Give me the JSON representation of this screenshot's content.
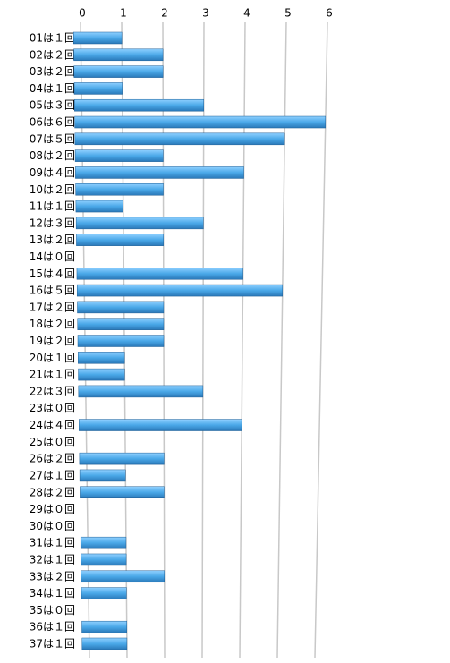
{
  "chart_data": {
    "type": "bar",
    "orientation": "horizontal",
    "categories": [
      "01は１回",
      "02は２回",
      "03は２回",
      "04は１回",
      "05は３回",
      "06は６回",
      "07は５回",
      "08は２回",
      "09は４回",
      "10は２回",
      "11は１回",
      "12は３回",
      "13は２回",
      "14は０回",
      "15は４回",
      "16は５回",
      "17は２回",
      "18は２回",
      "19は２回",
      "20は１回",
      "21は１回",
      "22は３回",
      "23は０回",
      "24は４回",
      "25は０回",
      "26は２回",
      "27は１回",
      "28は２回",
      "29は０回",
      "30は０回",
      "31は１回",
      "32は１回",
      "33は２回",
      "34は１回",
      "35は０回",
      "36は１回",
      "37は１回"
    ],
    "values": [
      1,
      2,
      2,
      1,
      3,
      6,
      5,
      2,
      4,
      2,
      1,
      3,
      2,
      0,
      4,
      5,
      2,
      2,
      2,
      1,
      1,
      3,
      0,
      4,
      0,
      2,
      1,
      2,
      0,
      0,
      1,
      1,
      2,
      1,
      0,
      1,
      1
    ],
    "color": "#4aa8e8",
    "xlim": [
      0,
      6.5
    ],
    "xticks": [
      0,
      1,
      2,
      3,
      4,
      5,
      6
    ],
    "grid": true
  }
}
